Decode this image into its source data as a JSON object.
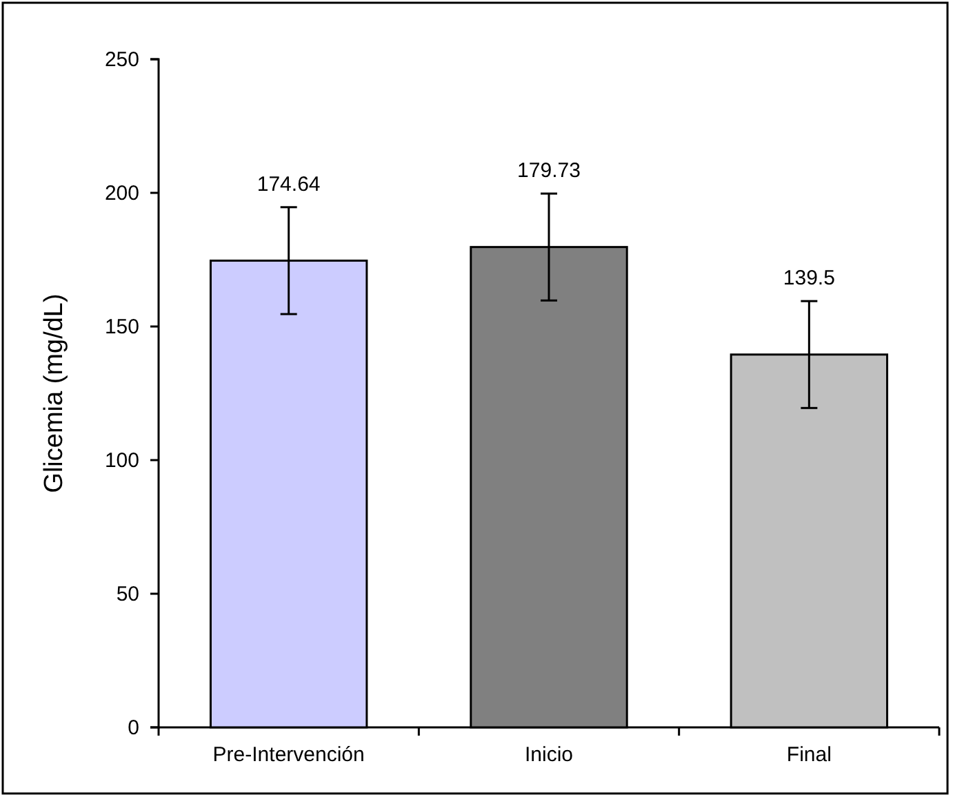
{
  "chart_data": {
    "type": "bar",
    "ylabel": "Glicemia (mg/dL)",
    "categories": [
      "Pre-Intervención",
      "Inicio",
      "Final"
    ],
    "values": [
      174.64,
      179.73,
      139.5
    ],
    "colors": [
      "#ccccff",
      "#808080",
      "#c0c0c0"
    ],
    "errors": [
      20,
      20,
      20
    ],
    "data_labels": true,
    "ylim": [
      0,
      250
    ],
    "yticks": [
      0,
      50,
      100,
      150,
      200,
      250
    ],
    "grid": false
  }
}
